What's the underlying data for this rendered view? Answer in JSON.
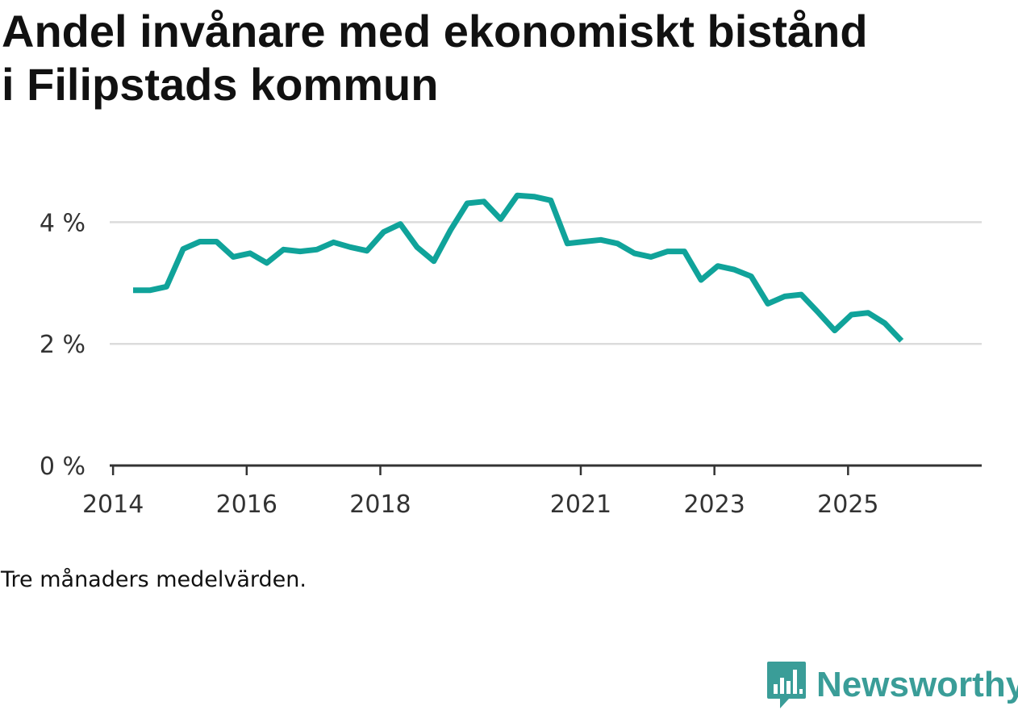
{
  "title": "Andel invånare med ekonomiskt bistånd i Filipstads kommun",
  "note": "Tre månaders medelvärden.",
  "brand": {
    "name": "Newsworthy",
    "logo_icon": "bar-chart-badge-icon",
    "color": "#3a9d98"
  },
  "chart_data": {
    "type": "line",
    "title": "Andel invånare med ekonomiskt bistånd i Filipstads kommun",
    "xlabel": "",
    "ylabel": "",
    "ylim": [
      0,
      5
    ],
    "y_ticks": [
      0,
      2,
      4
    ],
    "y_tick_labels": [
      "0 %",
      "2 %",
      "4 %"
    ],
    "x_ticks": [
      2014,
      2016,
      2018,
      2021,
      2023,
      2025
    ],
    "x_tick_labels": [
      "2014",
      "2016",
      "2018",
      "2021",
      "2023",
      "2025"
    ],
    "xlim": [
      2013.95,
      2027.0
    ],
    "grid": true,
    "line_color": "#10a39a",
    "series": [
      {
        "name": "Andel invånare med ekonomiskt bistånd",
        "x": [
          2014.3,
          2014.55,
          2014.8,
          2015.05,
          2015.3,
          2015.55,
          2015.8,
          2016.05,
          2016.3,
          2016.55,
          2016.8,
          2017.05,
          2017.3,
          2017.55,
          2017.8,
          2018.05,
          2018.3,
          2018.55,
          2018.8,
          2019.05,
          2019.3,
          2019.55,
          2019.8,
          2020.05,
          2020.3,
          2020.55,
          2020.8,
          2021.05,
          2021.3,
          2021.55,
          2021.8,
          2022.05,
          2022.3,
          2022.55,
          2022.8,
          2023.05,
          2023.3,
          2023.55,
          2023.8,
          2024.05,
          2024.3,
          2024.55,
          2024.8,
          2025.05,
          2025.3,
          2025.55,
          2025.8
        ],
        "values": [
          2.88,
          2.88,
          2.94,
          3.56,
          3.68,
          3.68,
          3.43,
          3.49,
          3.33,
          3.55,
          3.52,
          3.55,
          3.67,
          3.59,
          3.53,
          3.84,
          3.97,
          3.59,
          3.36,
          3.87,
          4.31,
          4.34,
          4.05,
          4.44,
          4.42,
          4.36,
          3.65,
          3.68,
          3.71,
          3.65,
          3.49,
          3.43,
          3.52,
          3.52,
          3.05,
          3.28,
          3.22,
          3.11,
          2.66,
          2.78,
          2.81,
          2.52,
          2.22,
          2.48,
          2.51,
          2.34,
          2.05
        ]
      }
    ]
  }
}
